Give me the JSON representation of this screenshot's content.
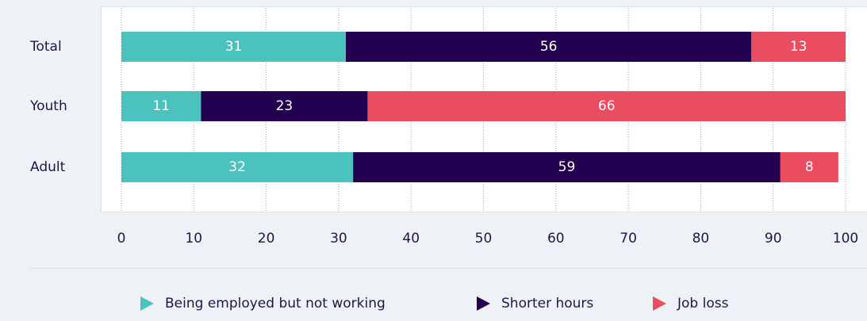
{
  "chart_data": {
    "type": "bar",
    "orientation": "horizontal",
    "stacked": true,
    "categories": [
      "Total",
      "Youth",
      "Adult"
    ],
    "series": [
      {
        "name": "Being employed but not working",
        "color": "#4bc2be",
        "values": [
          31,
          11,
          32
        ]
      },
      {
        "name": "Shorter hours",
        "color": "#230050",
        "values": [
          56,
          23,
          59
        ]
      },
      {
        "name": "Job loss",
        "color": "#ea4c60",
        "values": [
          13,
          66,
          8
        ]
      }
    ],
    "xlim": [
      0,
      100
    ],
    "xticks": [
      0,
      10,
      20,
      30,
      40,
      50,
      60,
      70,
      80,
      90,
      100
    ],
    "grid": true,
    "legend": "bottom"
  }
}
